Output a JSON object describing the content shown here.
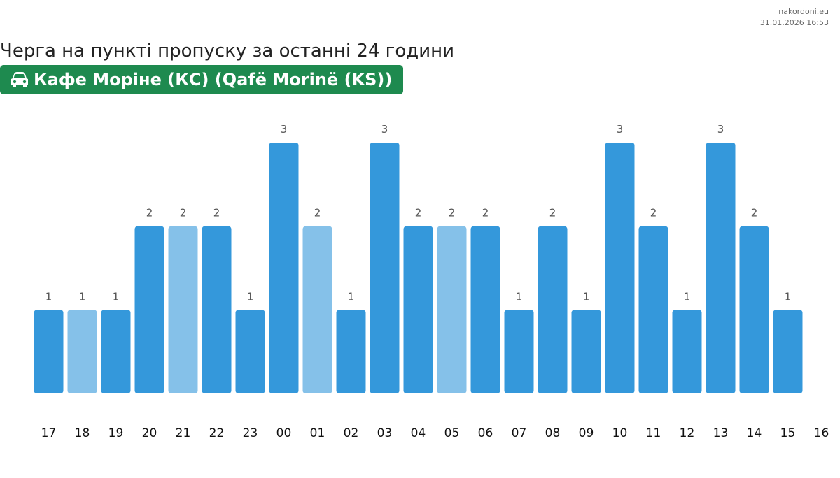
{
  "source": {
    "site": "nakordoni.eu",
    "timestamp": "31.01.2026 16:53"
  },
  "title": "Черга на пункті пропуску за останні 24 години",
  "checkpoint": {
    "icon": "car-icon",
    "name": "Кафе Моріне (КС) (Qafë Morinë (KS))",
    "color": "#1e8a4f"
  },
  "chart_data": {
    "type": "bar",
    "categories": [
      "17",
      "18",
      "19",
      "20",
      "21",
      "22",
      "23",
      "00",
      "01",
      "02",
      "03",
      "04",
      "05",
      "06",
      "07",
      "08",
      "09",
      "10",
      "11",
      "12",
      "13",
      "14",
      "15"
    ],
    "values": [
      1,
      1,
      1,
      2,
      2,
      2,
      1,
      3,
      2,
      1,
      3,
      2,
      2,
      2,
      1,
      2,
      1,
      3,
      2,
      1,
      3,
      2,
      1
    ],
    "estimated": [
      false,
      true,
      false,
      false,
      true,
      false,
      false,
      false,
      true,
      false,
      false,
      false,
      true,
      false,
      false,
      false,
      false,
      false,
      false,
      false,
      false,
      false,
      false
    ],
    "extra_tick": "16",
    "ylim": [
      0,
      3
    ],
    "grid": false,
    "colors": {
      "bar": "#3498db",
      "bar_light": "#85c1e9"
    }
  }
}
